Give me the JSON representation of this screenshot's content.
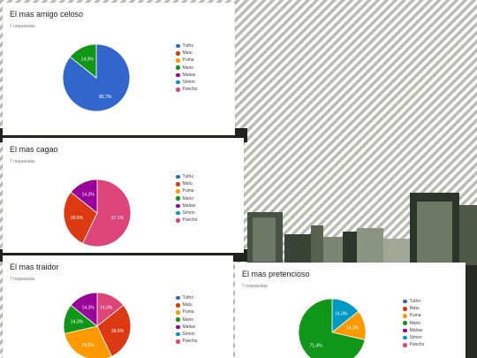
{
  "legend_labels": [
    "Tutho",
    "Matu",
    "Puma",
    "Mario",
    "Matias",
    "Simon",
    "Pancho"
  ],
  "colors": {
    "Tutho": "#3366cc",
    "Matu": "#dc3912",
    "Puma": "#ff9900",
    "Mario": "#109618",
    "Matias": "#990099",
    "Simon": "#0099c6",
    "Pancho": "#dd4477"
  },
  "chart_data": [
    {
      "type": "pie",
      "title": "El mas amigo celoso",
      "subtitle": "7 respuestas",
      "categories": [
        "Tutho",
        "Mario"
      ],
      "values": [
        6,
        1
      ],
      "labels": [
        "85,7%",
        "14,3%"
      ]
    },
    {
      "type": "pie",
      "title": "El mas cagao",
      "subtitle": "7 respuestas",
      "categories": [
        "Pancho",
        "Matu",
        "Matias"
      ],
      "values": [
        4,
        2,
        1
      ],
      "labels": [
        "57,1%",
        "28,6%",
        "14,3%"
      ]
    },
    {
      "type": "pie",
      "title": "El mas traidor",
      "subtitle": "7 respuestas",
      "categories": [
        "Pancho",
        "Matu",
        "Puma",
        "Mario",
        "Matias"
      ],
      "values": [
        1,
        2,
        2,
        1,
        1
      ],
      "labels": [
        "14,3%",
        "28,6%",
        "28,6%",
        "14,3%",
        "14,3%"
      ]
    },
    {
      "type": "pie",
      "title": "El mas pretencioso",
      "subtitle": "7 respuestas",
      "categories": [
        "Simon",
        "Puma",
        "Mario"
      ],
      "values": [
        1,
        1,
        5
      ],
      "labels": [
        "14,3%",
        "14,3%",
        "71,4%"
      ]
    }
  ]
}
